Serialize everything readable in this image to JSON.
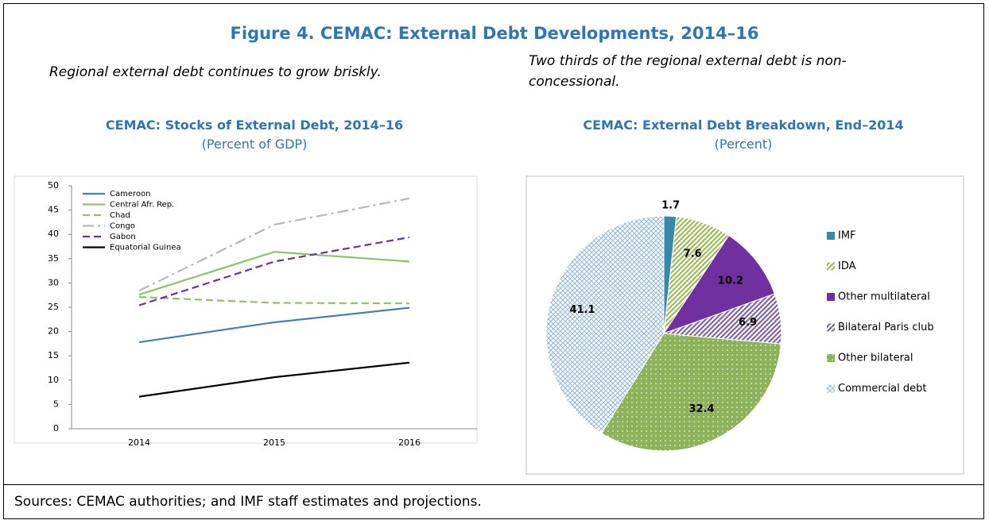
{
  "figure_title": "Figure 4. CEMAC: External Debt Developments, 2014–16",
  "left_caption": "Regional external debt continues to grow briskly.",
  "right_caption": "Two thirds of the regional external debt is non-concessional.",
  "source": "Sources: CEMAC authorities; and IMF staff estimates and projections.",
  "chart_data": [
    {
      "type": "line",
      "title": "CEMAC: Stocks of External Debt, 2014–16",
      "subtitle": "(Percent of GDP)",
      "categories": [
        "2014",
        "2015",
        "2016"
      ],
      "ylim": [
        0,
        50
      ],
      "yticks": [
        0,
        5,
        10,
        15,
        20,
        25,
        30,
        35,
        40,
        45,
        50
      ],
      "legend": "top-left",
      "series": [
        {
          "name": "Cameroon",
          "color": "#4a7eb0",
          "dash": "solid",
          "values": [
            17.8,
            21.9,
            24.9
          ]
        },
        {
          "name": "Central Afr. Rep.",
          "color": "#8fc16a",
          "dash": "solid",
          "values": [
            27.6,
            36.4,
            34.4
          ]
        },
        {
          "name": "Chad",
          "color": "#8fc16a",
          "dash": "dashed",
          "values": [
            27.1,
            25.9,
            25.8
          ]
        },
        {
          "name": "Congo",
          "color": "#b8b8b8",
          "dash": "dashdot",
          "values": [
            28.4,
            42.0,
            47.4
          ]
        },
        {
          "name": "Gabon",
          "color": "#7030a0",
          "dash": "dashed",
          "values": [
            25.4,
            34.4,
            39.4
          ]
        },
        {
          "name": "Equatorial Guinea",
          "color": "#000000",
          "dash": "solid",
          "values": [
            6.6,
            10.6,
            13.6
          ]
        }
      ]
    },
    {
      "type": "pie",
      "title": "CEMAC: External Debt Breakdown, End–2014",
      "subtitle": "(Percent)",
      "legend": "right",
      "categories": [
        "IMF",
        "IDA",
        "Other multilateral",
        "Bilateral Paris club",
        "Other bilateral",
        "Commercial debt"
      ],
      "values": [
        1.7,
        7.6,
        10.2,
        6.9,
        32.4,
        41.1
      ],
      "colors": [
        "#3a87a8",
        "#9bbb59",
        "#7030a0",
        "#8064a2",
        "#8db35a",
        "#8fb6d8"
      ],
      "patterns": [
        "solid",
        "stripes",
        "solid",
        "stripes",
        "dots",
        "crosshatch"
      ]
    }
  ]
}
